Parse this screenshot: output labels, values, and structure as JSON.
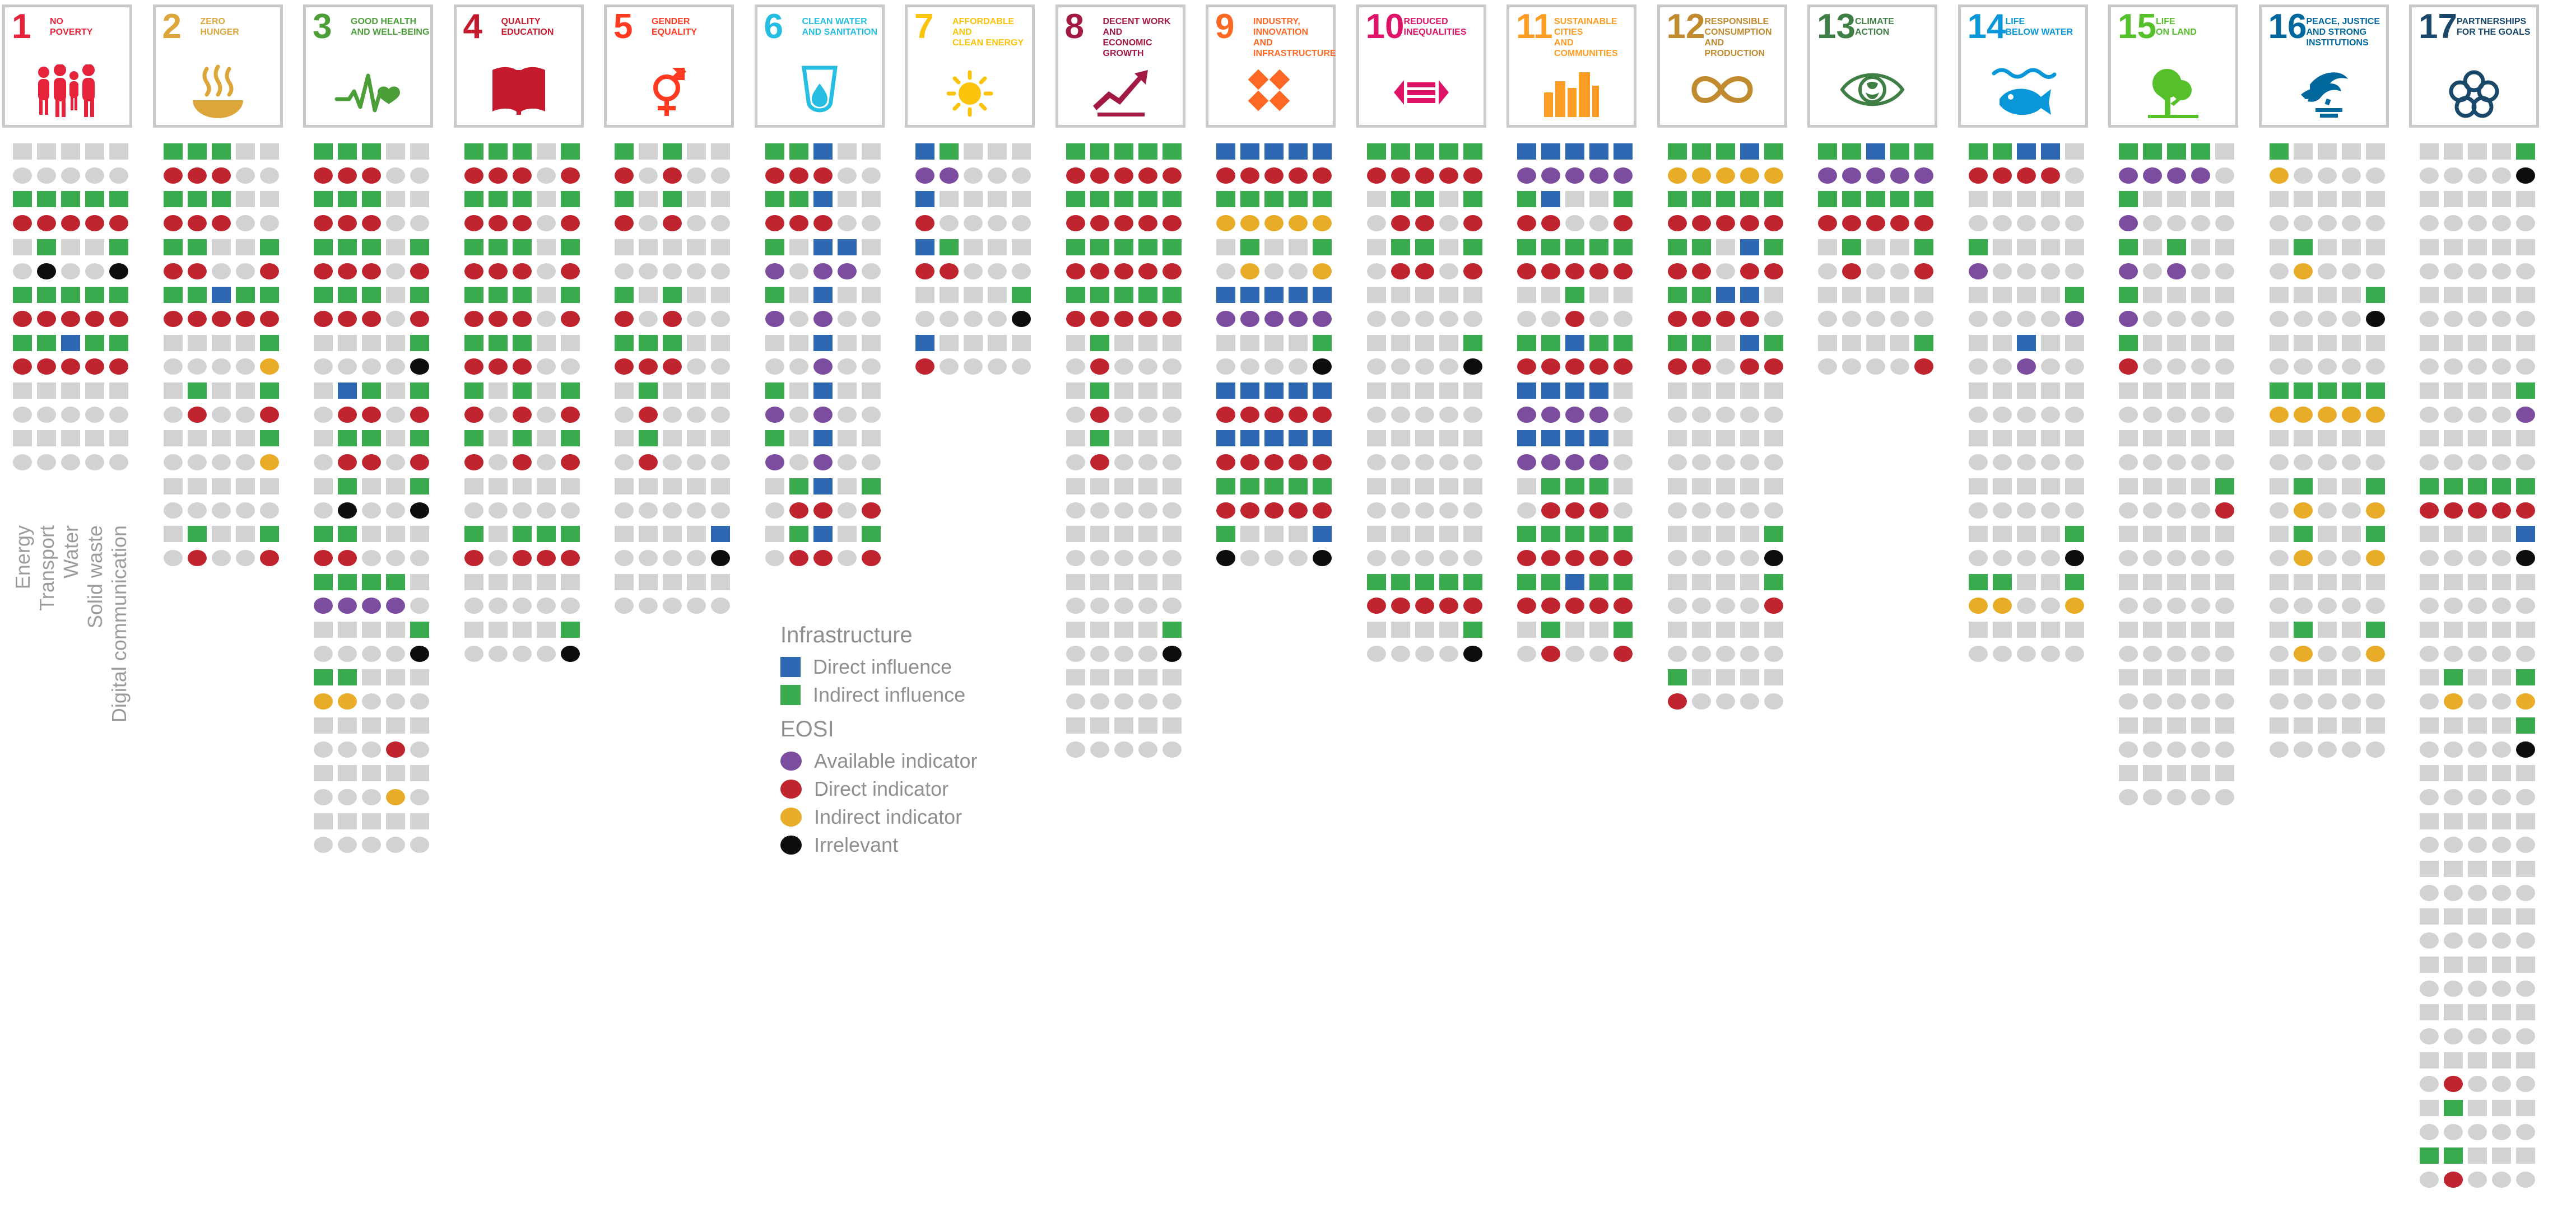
{
  "row_labels": [
    "Energy",
    "Transport",
    "Water",
    "Solid waste",
    "Digital communication"
  ],
  "legend": {
    "infrastructure_heading": "Infrastructure",
    "direct_influence": "Direct influence",
    "indirect_influence": "Indirect influence",
    "eosi_heading": "EOSI",
    "available_indicator": "Available indicator",
    "direct_indicator": "Direct indicator",
    "indirect_indicator": "Indirect indicator",
    "irrelevant": "Irrelevant"
  },
  "colors": {
    "direct_influence_blue": "#2F68B2",
    "indirect_influence_green": "#3AAA4F",
    "available_indicator_purple": "#7C4C9F",
    "direct_indicator_red": "#C0242E",
    "indirect_indicator_yellow": "#E8AC28",
    "irrelevant_black": "#0d0d0d",
    "empty_gray": "#d2d2d2",
    "card_border": "#c9c9c9",
    "label_gray": "#8f8f8f"
  },
  "chart_data": {
    "type": "heatmap",
    "title": "Infrastructure influence and EOSI indicator availability for SDG targets",
    "columns_per_goal": [
      "Energy",
      "Transport",
      "Water",
      "Solid waste",
      "Digital communication"
    ],
    "cell_codes": {
      ".": "empty (gray)",
      "G": "Indirect influence (green square)",
      "B": "Direct influence (blue square)",
      "P": "Available indicator (purple circle)",
      "R": "Direct indicator (red circle)",
      "Y": "Indirect indicator (yellow circle)",
      "K": "Irrelevant (black circle)"
    },
    "row_semantics": "Rows alternate: influence row (squares) then indicator row (circles) per SDG target",
    "legend_position": "center, below goal 7 block",
    "goals": [
      {
        "number": 1,
        "title": "NO\nPOVERTY",
        "color": "#E5243B",
        "rows": [
          ".....",
          ".....",
          "GGGGG",
          "RRRRR",
          ".G..G",
          ".K..K",
          "GGGGG",
          "RRRRR",
          "GGBGG",
          "RRRRR",
          ".....",
          ".....",
          ".....",
          "....."
        ]
      },
      {
        "number": 2,
        "title": "ZERO\nHUNGER",
        "color": "#DDA63A",
        "rows": [
          "GGG..",
          "RRR..",
          "GGG..",
          "RRR..",
          "GG..G",
          "RR..R",
          "GGBGG",
          "RRRRR",
          "....G",
          "....Y",
          ".G..G",
          ".R..R",
          "....G",
          "....Y",
          ".....",
          ".....",
          ".G..G",
          ".R..R"
        ]
      },
      {
        "number": 3,
        "title": "GOOD HEALTH\nAND WELL-BEING",
        "color": "#4C9F38",
        "rows": [
          "GGG..",
          "RRR..",
          "GGG..",
          "RRR..",
          "GGG.G",
          "RRR.R",
          "GGG.G",
          "RRR.R",
          "....G",
          "....K",
          ".BG.G",
          ".RR.R",
          ".GG.G",
          ".RR.R",
          ".G..G",
          ".K..K",
          "GG...",
          "RR...",
          "GGGG.",
          "PPPP.",
          "....G",
          "....K",
          "GG...",
          "YY...",
          ".....",
          "...R.",
          ".....",
          "...Y.",
          ".....",
          "....."
        ]
      },
      {
        "number": 4,
        "title": "QUALITY\nEDUCATION",
        "color": "#C5192D",
        "rows": [
          "GGG.G",
          "RRR.R",
          "GGG.G",
          "RRR.R",
          "GGG.G",
          "RRR.R",
          "GGG.G",
          "RRR.R",
          "GGG..",
          "RRR..",
          "G.G.G",
          "R.R.R",
          "G.G.G",
          "R.R.R",
          ".....",
          ".....",
          "G.GGG",
          "R.RRR",
          ".....",
          ".....",
          "....G",
          "....K"
        ]
      },
      {
        "number": 5,
        "title": "GENDER\nEQUALITY",
        "color": "#FF3A21",
        "rows": [
          "G.G..",
          "R.R..",
          "G.G..",
          "R.R..",
          ".....",
          ".....",
          "G.G..",
          "R.R..",
          "GGG..",
          "RRR..",
          ".G...",
          ".R...",
          ".G...",
          ".R...",
          ".....",
          ".....",
          "....B",
          "....K",
          ".....",
          "....."
        ]
      },
      {
        "number": 6,
        "title": "CLEAN WATER\nAND SANITATION",
        "color": "#26BDE2",
        "rows": [
          "GGB..",
          "RRR..",
          "GGB..",
          "RRR..",
          "G.BB.",
          "P.PP.",
          "G.B..",
          "P.P..",
          "..B..",
          "..P..",
          "G.B..",
          "P.P..",
          "G.B..",
          "P.P..",
          ".GB.G",
          ".RR.R",
          ".GB.G",
          ".RR.R"
        ]
      },
      {
        "number": 7,
        "title": "AFFORDABLE AND\nCLEAN ENERGY",
        "color": "#FCC30B",
        "rows": [
          "BG...",
          "PP...",
          "B....",
          "R....",
          "BG...",
          "RR...",
          "....G",
          "....K",
          "B....",
          "R...."
        ]
      },
      {
        "number": 8,
        "title": "DECENT WORK AND\nECONOMIC GROWTH",
        "color": "#A21942",
        "rows": [
          "GGGGG",
          "RRRRR",
          "GGGGG",
          "RRRRR",
          "GGGGG",
          "RRRRR",
          "GGGGG",
          "RRRRR",
          ".G...",
          ".R...",
          ".G...",
          ".R...",
          ".G...",
          ".R...",
          ".....",
          ".....",
          ".....",
          ".....",
          ".....",
          ".....",
          "....G",
          "....K",
          ".....",
          ".....",
          ".....",
          "....."
        ]
      },
      {
        "number": 9,
        "title": "INDUSTRY, INNOVATION\nAND INFRASTRUCTURE",
        "color": "#FD6925",
        "rows": [
          "BBBBB",
          "RRRRR",
          "GGGGG",
          "YYYYY",
          ".G..G",
          ".Y..Y",
          "BBBBB",
          "PPPPP",
          "....G",
          "....K",
          "BBBBB",
          "RRRRR",
          "BBBBB",
          "RRRRR",
          "GGGGG",
          "RRRRR",
          "G...B",
          "K...K"
        ]
      },
      {
        "number": 10,
        "title": "REDUCED\nINEQUALITIES",
        "color": "#DD1367",
        "rows": [
          "GGGGG",
          "RRRRR",
          ".GG.G",
          ".RR.R",
          ".GG.G",
          ".RR.R",
          ".....",
          ".....",
          "....G",
          "....K",
          ".....",
          ".....",
          ".....",
          ".....",
          ".....",
          ".....",
          ".....",
          ".....",
          "GGGGG",
          "RRRRR",
          "....G",
          "....K"
        ]
      },
      {
        "number": 11,
        "title": "SUSTAINABLE CITIES\nAND COMMUNITIES",
        "color": "#FD9D24",
        "rows": [
          "BBBBB",
          "PPPPP",
          "GB..G",
          "RR..R",
          "GGGGG",
          "RRRRR",
          "..G..",
          "..R..",
          "GGBGG",
          "RRRRR",
          "BBBB.",
          "PPPP.",
          "BBBB.",
          "PPPP.",
          ".GGG.",
          ".RRR.",
          "GGGGG",
          "RRRRR",
          "GGBGG",
          "RRRRR",
          ".G..G",
          ".R..R"
        ]
      },
      {
        "number": 12,
        "title": "RESPONSIBLE\nCONSUMPTION\nAND PRODUCTION",
        "color": "#BF8B2E",
        "rows": [
          "GGGBG",
          "YYYYY",
          "GGGGG",
          "RRRRR",
          "GG.BG",
          "RR.RR",
          "GGBB.",
          "RRRR.",
          "GG.BG",
          "RR.RR",
          ".....",
          ".....",
          ".....",
          ".....",
          ".....",
          ".....",
          "....G",
          "....K",
          "....G",
          "....R",
          ".....",
          ".....",
          "G....",
          "R...."
        ]
      },
      {
        "number": 13,
        "title": "CLIMATE\nACTION",
        "color": "#3F7E44",
        "rows": [
          "GGBGG",
          "PPPPP",
          "GGGGG",
          "RRRRR",
          ".G..G",
          ".R..R",
          ".....",
          ".....",
          "....G",
          "....R"
        ]
      },
      {
        "number": 14,
        "title": "LIFE\nBELOW WATER",
        "color": "#0A97D9",
        "rows": [
          "GGBB.",
          "RRRR.",
          ".....",
          ".....",
          "G....",
          "P....",
          "....G",
          "....P",
          "..B..",
          "..P..",
          ".....",
          ".....",
          ".....",
          ".....",
          ".....",
          ".....",
          "....G",
          "....K",
          "GG..G",
          "YY..Y",
          ".....",
          "....."
        ]
      },
      {
        "number": 15,
        "title": "LIFE\nON LAND",
        "color": "#56C02B",
        "rows": [
          "GGGG.",
          "PPPP.",
          "G....",
          "P....",
          "G.G..",
          "P.P..",
          "G....",
          "P....",
          "G....",
          "R....",
          ".....",
          ".....",
          ".....",
          ".....",
          "....G",
          "....R",
          ".....",
          ".....",
          ".....",
          ".....",
          ".....",
          ".....",
          ".....",
          ".....",
          ".....",
          ".....",
          ".....",
          "....."
        ]
      },
      {
        "number": 16,
        "title": "PEACE, JUSTICE\nAND STRONG\nINSTITUTIONS",
        "color": "#00689D",
        "rows": [
          "G....",
          "Y....",
          ".....",
          ".....",
          ".G...",
          ".Y...",
          "....G",
          "....K",
          ".....",
          ".....",
          "GGGGG",
          "YYYYY",
          ".....",
          ".....",
          ".G..G",
          ".Y..Y",
          ".G..G",
          ".Y..Y",
          ".....",
          ".....",
          ".G..G",
          ".Y..Y",
          ".....",
          ".....",
          ".....",
          "....."
        ]
      },
      {
        "number": 17,
        "title": "PARTNERSHIPS\nFOR THE GOALS",
        "color": "#19486A",
        "rows": [
          "....G",
          "....K",
          ".....",
          ".....",
          ".....",
          ".....",
          ".....",
          ".....",
          ".....",
          ".....",
          "....G",
          "....P",
          ".....",
          ".....",
          "GGGGG",
          "RRRRR",
          "....B",
          "....K",
          ".....",
          ".....",
          ".....",
          ".....",
          ".G..G",
          ".Y..Y",
          "....G",
          "....K",
          ".....",
          ".....",
          ".....",
          ".....",
          ".....",
          ".....",
          ".....",
          ".....",
          ".....",
          ".....",
          ".....",
          ".....",
          ".....",
          ".R...",
          ".G...",
          ".....",
          "GG...",
          ".R..."
        ]
      }
    ]
  }
}
